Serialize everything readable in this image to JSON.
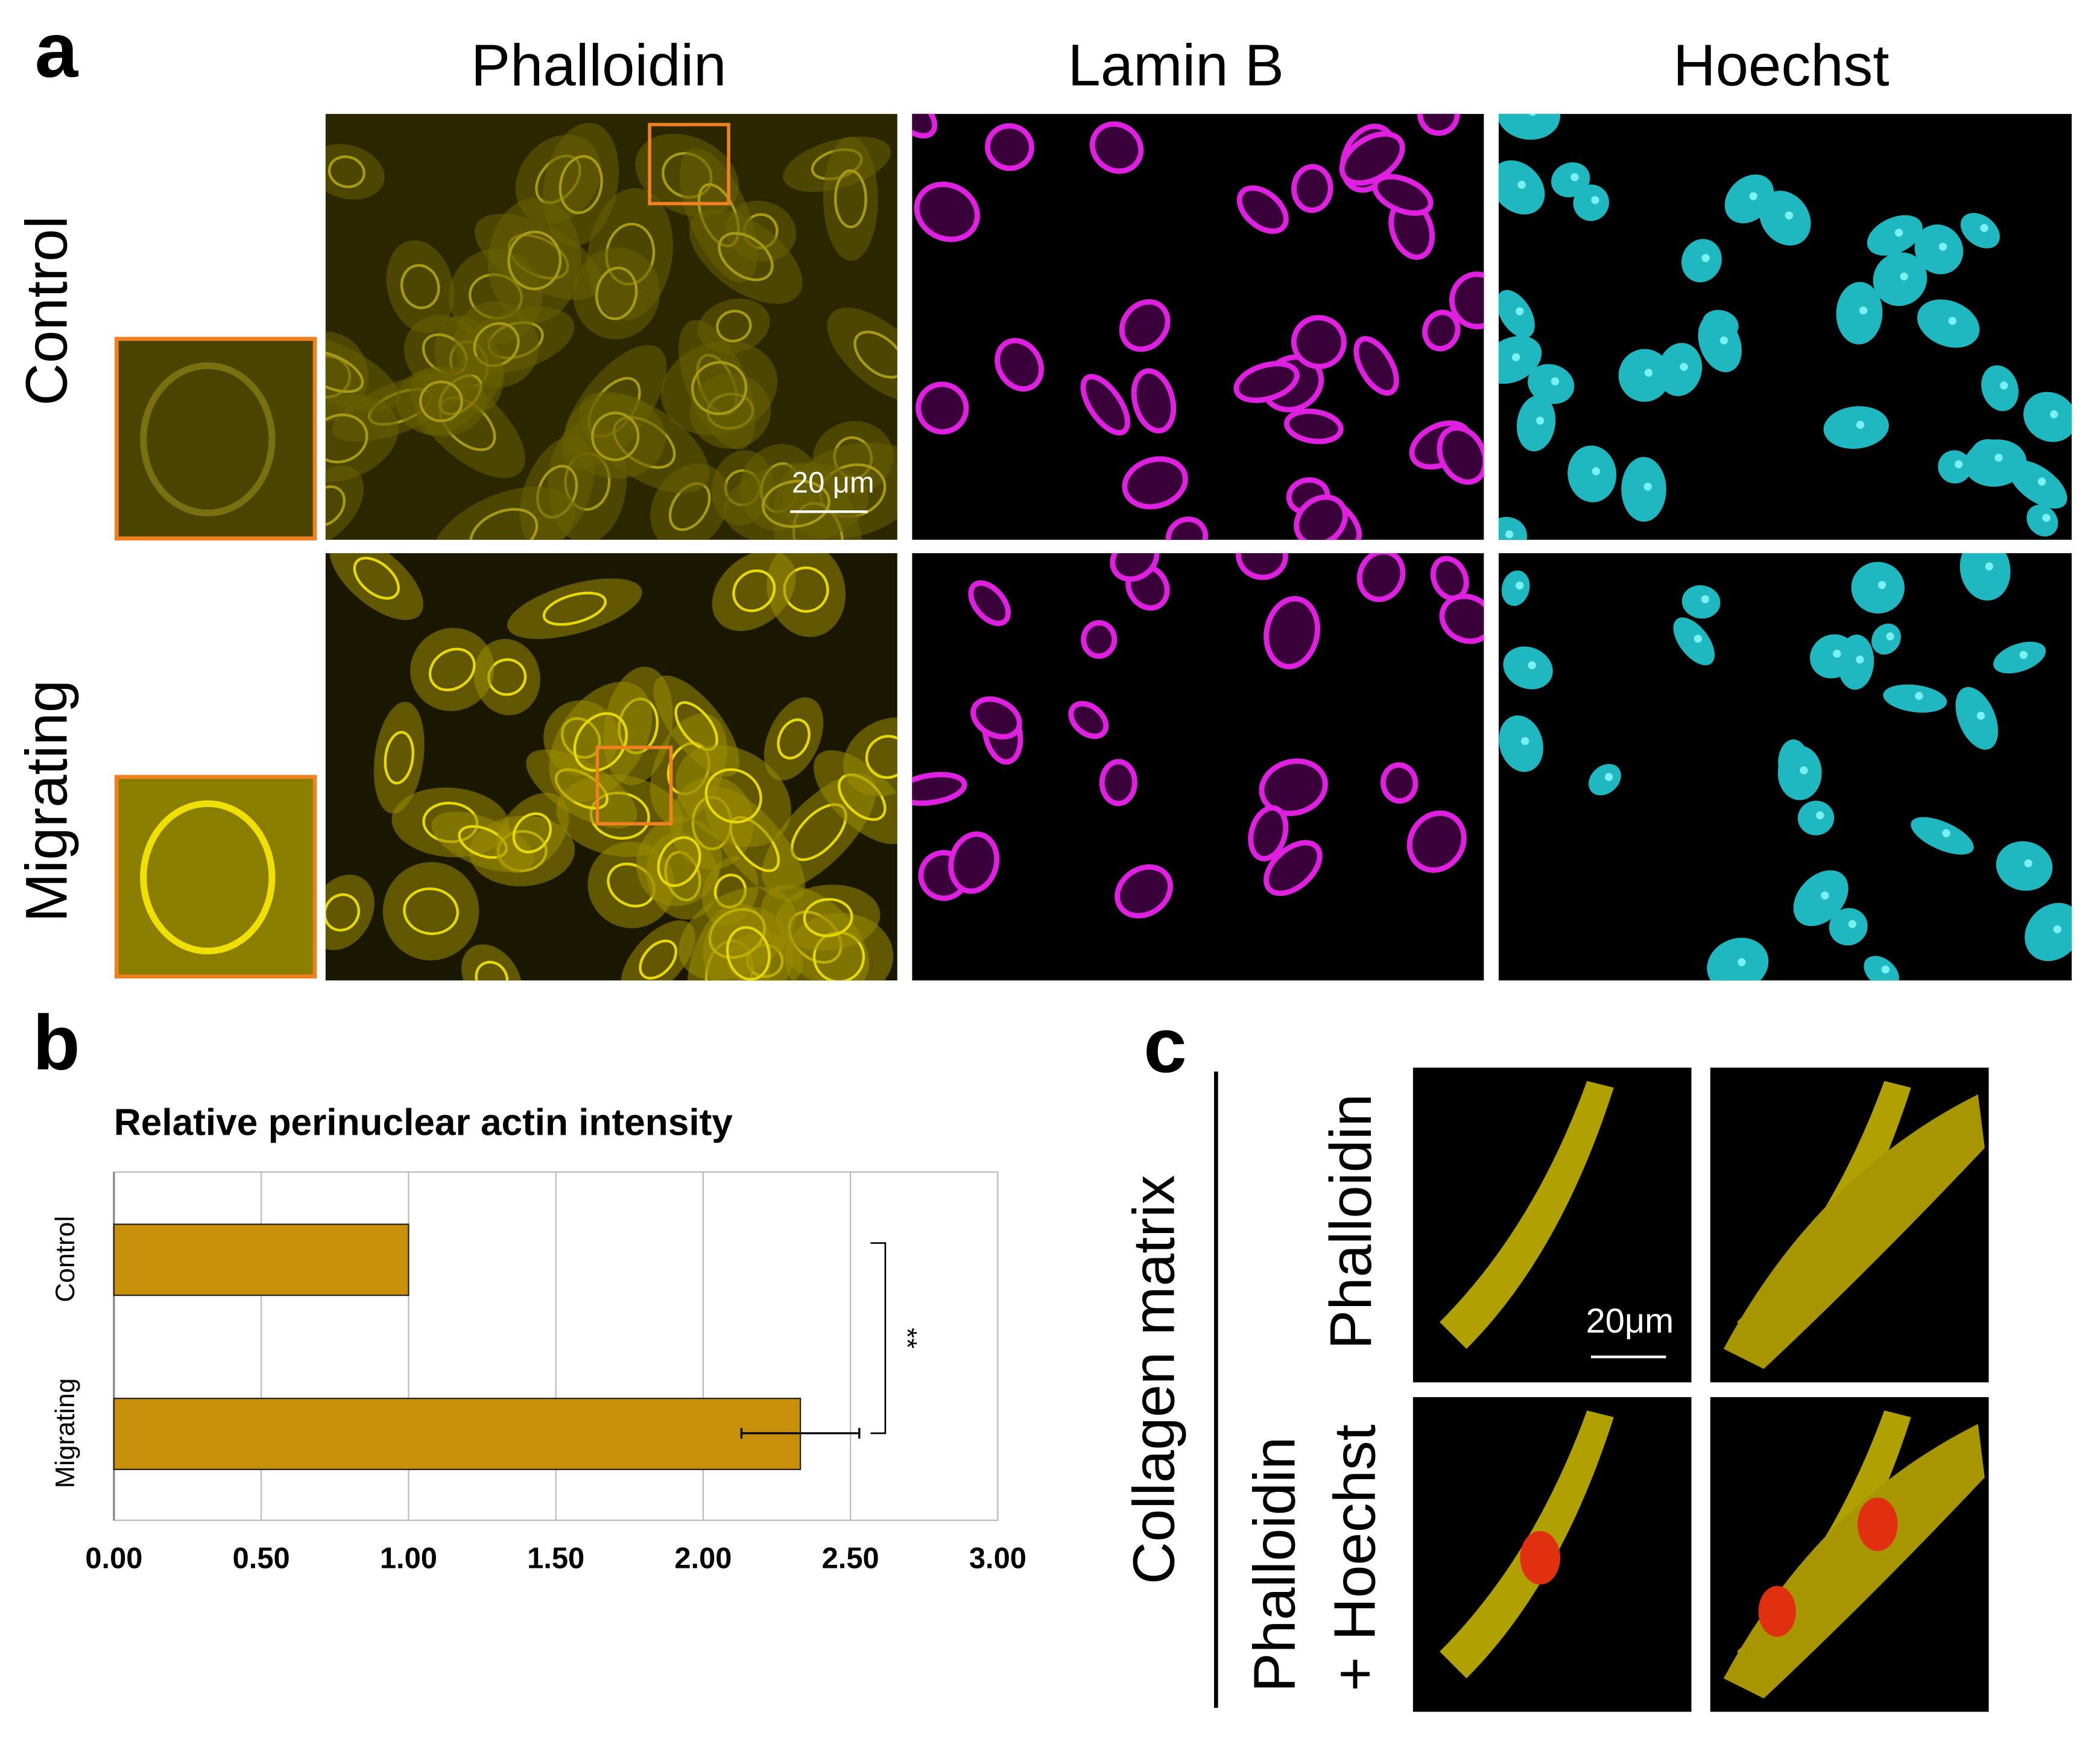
{
  "panel_labels": [
    "a",
    "b",
    "c"
  ],
  "panel_a": {
    "columns": [
      "Phalloidin",
      "Lamin B",
      "Hoechst"
    ],
    "rows": [
      "Control",
      "Migrating"
    ],
    "scale_bar": "20 μm"
  },
  "chart_data": {
    "type": "bar",
    "orientation": "horizontal",
    "title": "Relative perinuclear actin intensity",
    "categories": [
      "Control",
      "Migrating"
    ],
    "values": [
      1.0,
      2.33
    ],
    "errors": [
      null,
      0.2
    ],
    "annotation": "**",
    "color": "#c8900a",
    "xlim": [
      0,
      3
    ],
    "xticks": [
      {
        "value": 0,
        "label": "0.00"
      },
      {
        "value": 0.5,
        "label": "0.50"
      },
      {
        "value": 1,
        "label": "1.00"
      },
      {
        "value": 1.5,
        "label": "1.50"
      },
      {
        "value": 2,
        "label": "2.00"
      },
      {
        "value": 2.5,
        "label": "2.50"
      },
      {
        "value": 3,
        "label": "3.00"
      }
    ],
    "grid": true
  },
  "panel_c": {
    "title": "Collagen matrix",
    "rows": [
      {
        "lines": [
          "Phalloidin"
        ]
      },
      {
        "lines": [
          "Phalloidin",
          "+ Hoechst"
        ]
      }
    ],
    "scale_bar": "20μm"
  }
}
